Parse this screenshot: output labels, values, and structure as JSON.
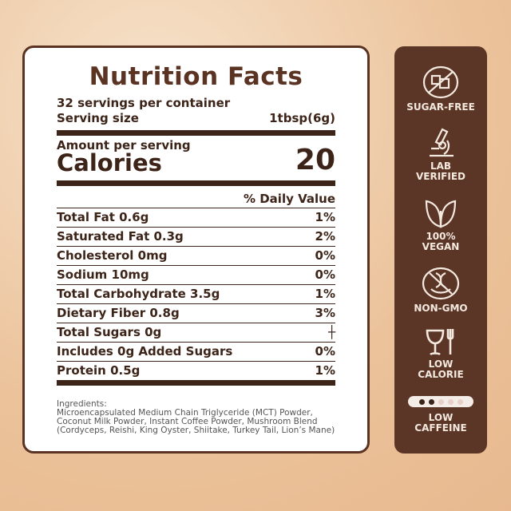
{
  "label": {
    "title": "Nutrition Facts",
    "servings": "32 servings per container",
    "serving_size_label": "Serving size",
    "serving_size_value": "1tbsp(6g)",
    "amount_per_serving": "Amount per serving",
    "calories_label": "Calories",
    "calories_value": "20",
    "daily_value_header": "% Daily Value",
    "rows": [
      {
        "name": "Total Fat 0.6g",
        "dv": "1%"
      },
      {
        "name": "Saturated Fat 0.3g",
        "dv": "2%"
      },
      {
        "name": "Cholesterol 0mg",
        "dv": "0%"
      },
      {
        "name": "Sodium 10mg",
        "dv": "0%"
      },
      {
        "name": "Total Carbohydrate 3.5g",
        "dv": "1%"
      },
      {
        "name": "Dietary Fiber 0.8g",
        "dv": "3%"
      },
      {
        "name": "Total Sugars 0g",
        "dv": "┼"
      },
      {
        "name": "Includes 0g Added Sugars",
        "dv": "0%"
      },
      {
        "name": "Protein 0.5g",
        "dv": "1%"
      }
    ],
    "ingredients_label": "Ingredients:",
    "ingredients": "Microencapsulated Medium Chain Triglyceride (MCT) Powder, Coconut Milk Powder, Instant Coffee Powder, Mushroom Blend (Cordyceps, Reishi, King Oyster, Shiitake, Turkey Tail, Lion’s Mane)"
  },
  "badges": [
    {
      "icon": "no-sugar-icon",
      "line1": "SUGAR-FREE",
      "line2": ""
    },
    {
      "icon": "microscope-icon",
      "line1": "LAB",
      "line2": "VERIFIED"
    },
    {
      "icon": "leaf-icon",
      "line1": "100%",
      "line2": "VEGAN"
    },
    {
      "icon": "no-gmo-icon",
      "line1": "NON-GMO",
      "line2": ""
    },
    {
      "icon": "glass-fork-icon",
      "line1": "LOW",
      "line2": "CALORIE"
    },
    {
      "icon": "caffeine-level-icon",
      "line1": "LOW",
      "line2": "CAFFEINE",
      "level": 2,
      "max": 5
    }
  ],
  "colors": {
    "brown": "#5b3526",
    "cream": "#f4e9df"
  }
}
